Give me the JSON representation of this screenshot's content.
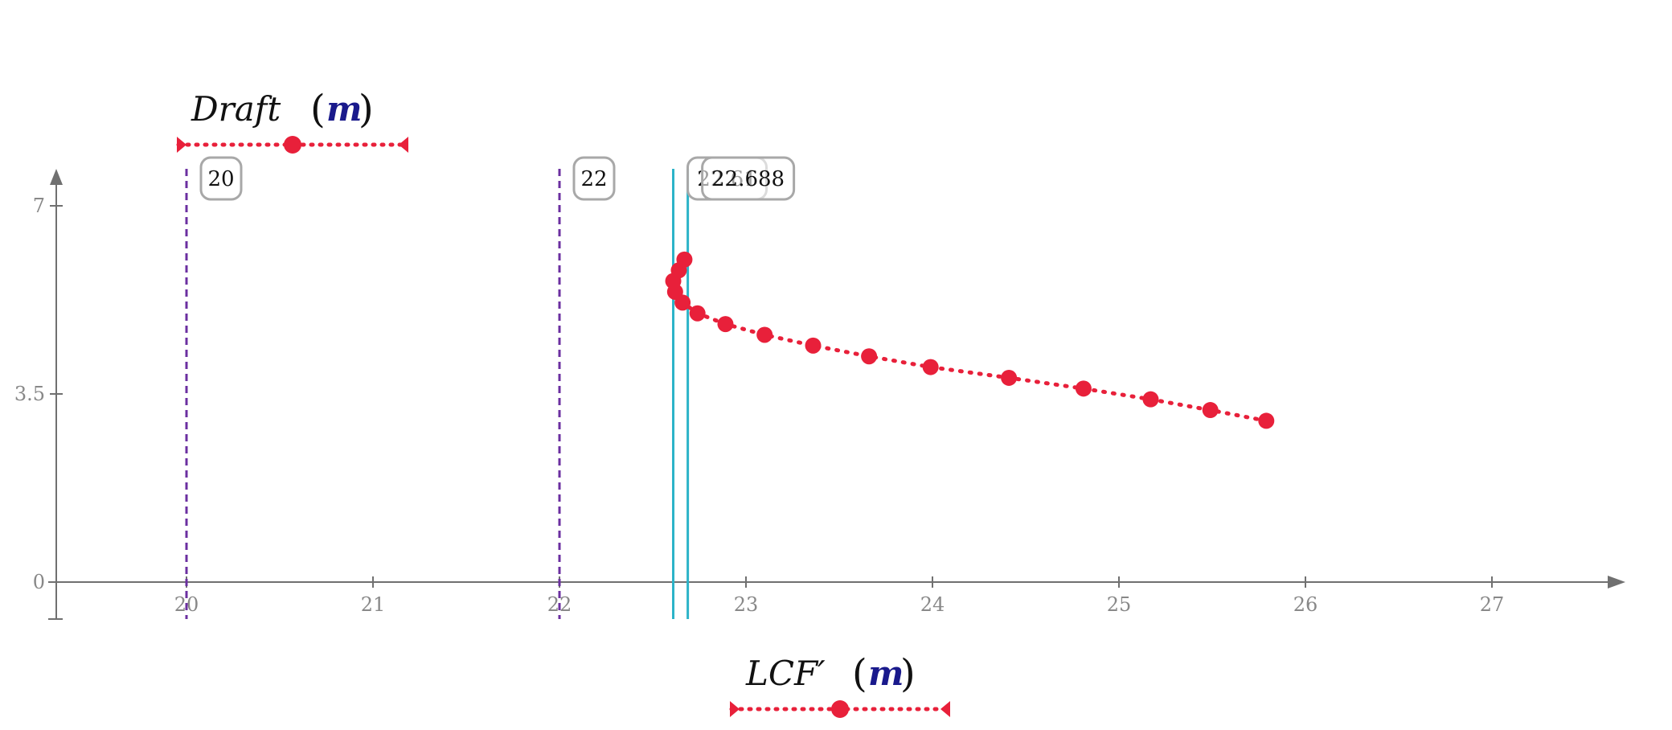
{
  "chart_data": {
    "type": "scatter",
    "xlabel": "LCF′",
    "xunit": "m",
    "ylabel": "Draft",
    "yunit": "m",
    "xlim": [
      19.3,
      27.7
    ],
    "ylim": [
      -0.7,
      7.7
    ],
    "xticks": [
      "20",
      "21",
      "22",
      "23",
      "24",
      "25",
      "26",
      "27"
    ],
    "yticks": [
      "0",
      "3.5",
      "7"
    ],
    "series": [
      {
        "color": "#e8203a",
        "style": "dotted-line-with-markers",
        "points": [
          {
            "x": 25.79,
            "y": 3.0
          },
          {
            "x": 25.49,
            "y": 3.2
          },
          {
            "x": 25.17,
            "y": 3.4
          },
          {
            "x": 24.81,
            "y": 3.6
          },
          {
            "x": 24.41,
            "y": 3.8
          },
          {
            "x": 23.99,
            "y": 4.0
          },
          {
            "x": 23.66,
            "y": 4.2
          },
          {
            "x": 23.36,
            "y": 4.4
          },
          {
            "x": 23.1,
            "y": 4.6
          },
          {
            "x": 22.89,
            "y": 4.8
          },
          {
            "x": 22.74,
            "y": 5.0
          },
          {
            "x": 22.66,
            "y": 5.2
          },
          {
            "x": 22.62,
            "y": 5.4
          },
          {
            "x": 22.61,
            "y": 5.6
          },
          {
            "x": 22.64,
            "y": 5.8
          },
          {
            "x": 22.67,
            "y": 6.0
          }
        ]
      }
    ],
    "vertical_lines": [
      {
        "x": 20,
        "label": "20",
        "style": "dashed",
        "color": "#6b2fa0"
      },
      {
        "x": 22,
        "label": "22",
        "style": "dashed",
        "color": "#6b2fa0"
      },
      {
        "x": 22.61,
        "label": "22.61",
        "style": "solid",
        "color": "#2bb3c8"
      },
      {
        "x": 22.688,
        "label": "22.688",
        "style": "solid",
        "color": "#2bb3c8"
      }
    ],
    "sliders": {
      "draft": {
        "min": 0,
        "max": 7,
        "value": 3.5
      },
      "lcf": {
        "min": 20,
        "max": 27,
        "value": 23.5
      }
    },
    "legend": "none",
    "grid": false
  },
  "colors": {
    "axis": "#707070",
    "series": "#e8203a",
    "marker_line": "#6b2fa0",
    "cursor_line": "#2bb3c8",
    "unit": "#1a1a8c"
  }
}
